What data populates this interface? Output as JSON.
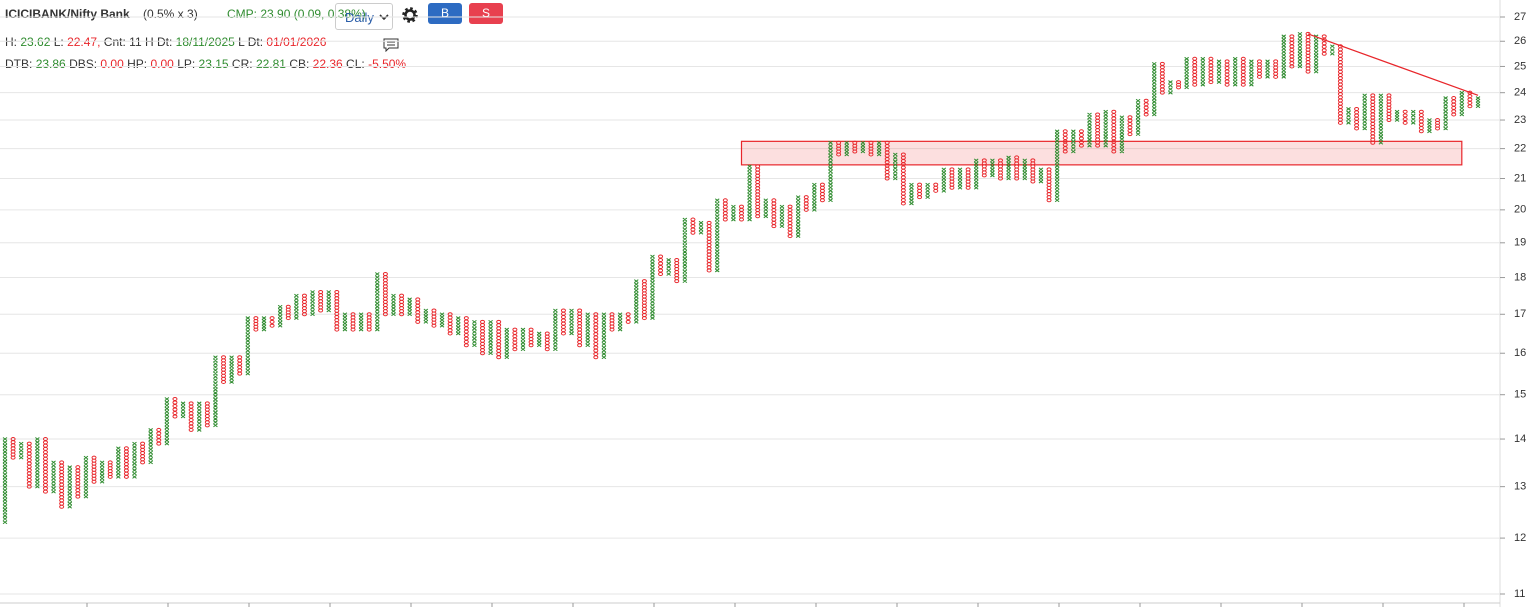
{
  "header": {
    "symbol": "ICICIBANK/Nifty Bank",
    "params": "(0.5% x 3)",
    "cmp": "CMP: 23.90 (0.09, 0.38%)",
    "interval": "Daily",
    "buy": "B",
    "sell": "S",
    "line1": [
      {
        "label": "H:",
        "value": "23.62",
        "color": "#2e8b2e"
      },
      {
        "label": "L:",
        "value": "22.47,",
        "color": "#e8262b"
      },
      {
        "label": "Cnt:",
        "value": "11",
        "color": "#333"
      },
      {
        "label": "H Dt:",
        "value": "18/11/2025",
        "color": "#2e8b2e"
      },
      {
        "label": "L Dt:",
        "value": "01/01/2026",
        "color": "#e8262b"
      }
    ],
    "line2": [
      {
        "label": "DTB:",
        "value": "23.86",
        "color": "#2e8b2e"
      },
      {
        "label": "DBS:",
        "value": "0.00",
        "color": "#e8262b"
      },
      {
        "label": "HP:",
        "value": "0.00",
        "color": "#e8262b"
      },
      {
        "label": "LP:",
        "value": "23.15",
        "color": "#2e8b2e"
      },
      {
        "label": "CR:",
        "value": "22.81",
        "color": "#2e8b2e"
      },
      {
        "label": "CB:",
        "value": "22.36",
        "color": "#e8262b"
      },
      {
        "label": "CL:",
        "value": "-5.50%",
        "color": "#e8262b"
      }
    ]
  },
  "chart_data": {
    "type": "point-and-figure",
    "box_percent": 0.5,
    "log_scale": true,
    "grid": true,
    "up_color": "#2e8b2e",
    "down_color": "#e8262b",
    "pivots": [
      12.3,
      14.0,
      13.6,
      13.9,
      13.0,
      14.0,
      12.9,
      13.5,
      12.6,
      13.4,
      12.8,
      13.6,
      13.1,
      13.5,
      13.2,
      13.8,
      13.2,
      13.9,
      13.5,
      14.2,
      13.9,
      14.9,
      14.5,
      14.8,
      14.2,
      14.8,
      14.3,
      15.9,
      15.3,
      15.9,
      15.5,
      16.9,
      16.6,
      16.9,
      16.7,
      17.2,
      16.9,
      17.5,
      17.0,
      17.6,
      17.1,
      17.6,
      16.6,
      17.0,
      16.6,
      17.0,
      16.6,
      18.1,
      17.0,
      17.5,
      17.0,
      17.4,
      16.8,
      17.1,
      16.7,
      17.0,
      16.5,
      16.9,
      16.2,
      16.8,
      16.0,
      16.8,
      15.9,
      16.6,
      16.1,
      16.6,
      16.2,
      16.5,
      16.1,
      17.1,
      16.5,
      17.1,
      16.2,
      17.0,
      15.9,
      17.0,
      16.6,
      17.0,
      16.8,
      17.9,
      16.9,
      18.6,
      18.1,
      18.5,
      17.9,
      19.7,
      19.3,
      19.6,
      18.2,
      20.3,
      19.7,
      20.1,
      19.7,
      21.4,
      19.8,
      20.3,
      19.5,
      20.1,
      19.2,
      20.4,
      20.0,
      20.8,
      20.3,
      22.2,
      21.8,
      22.2,
      21.9,
      22.2,
      21.8,
      22.2,
      21.0,
      21.8,
      20.2,
      20.8,
      20.4,
      20.8,
      20.6,
      21.3,
      20.7,
      21.3,
      20.7,
      21.6,
      21.1,
      21.6,
      21.0,
      21.7,
      21.0,
      21.6,
      20.9,
      21.3,
      20.3,
      22.6,
      21.9,
      22.6,
      22.1,
      23.2,
      22.1,
      23.3,
      21.9,
      23.1,
      22.5,
      23.7,
      23.2,
      25.1,
      24.0,
      24.4,
      24.2,
      25.3,
      24.3,
      25.3,
      24.4,
      25.2,
      24.3,
      25.3,
      24.3,
      25.2,
      24.6,
      25.2,
      24.6,
      26.2,
      25.0,
      26.3,
      24.8,
      26.2,
      25.5,
      25.8,
      22.9,
      23.4,
      22.7,
      23.9,
      22.2,
      23.9,
      23.0,
      23.3,
      22.9,
      23.3,
      22.6,
      23.0,
      22.7,
      23.8,
      23.2,
      24.0,
      23.5,
      23.8
    ],
    "ylim": [
      11,
      27
    ],
    "yticks": [
      11,
      12,
      13,
      14,
      15,
      16,
      17,
      18,
      19,
      20,
      21,
      22,
      23,
      24,
      25,
      26,
      27
    ],
    "zone": {
      "x": [
        91,
        180
      ],
      "y": [
        21.45,
        22.25
      ],
      "color": "#e8262b"
    },
    "trendline": {
      "x": [
        161,
        182
      ],
      "y": [
        26.3,
        23.9
      ],
      "color": "#e8262b"
    }
  }
}
